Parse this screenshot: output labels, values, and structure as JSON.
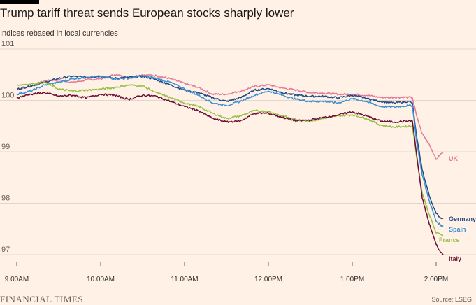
{
  "header": {
    "title": "Trump tariff threat sends European stocks sharply lower",
    "subtitle": "Indices rebased in local currencies"
  },
  "footer": {
    "logo": "FINANCIAL TIMES",
    "source": "Source: LSEG"
  },
  "colors": {
    "background": "#FFF1E5",
    "grid": "#E3D6CB",
    "UK": "#E37A95",
    "Germany": "#204A87",
    "Spain": "#3A8FD0",
    "France": "#96BF46",
    "Italy": "#6B0F33"
  },
  "chart_data": {
    "type": "line",
    "title": "Trump tariff threat sends European stocks sharply lower",
    "subtitle": "Indices rebased in local currencies",
    "xlabel": "",
    "ylabel": "",
    "xlim": [
      "9:00",
      "14:08"
    ],
    "ylim": [
      96.85,
      101.0
    ],
    "yticks": [
      97,
      98,
      99,
      100,
      101
    ],
    "xticks": [
      "9.00AM",
      "10.00AM",
      "11.00AM",
      "12.00PM",
      "1.00PM",
      "2.00PM"
    ],
    "grid": true,
    "legend": "direct labels at line ends",
    "series": [
      {
        "name": "UK",
        "points": [
          [
            "9:00",
            100.22
          ],
          [
            "9:10",
            100.28
          ],
          [
            "9:20",
            100.38
          ],
          [
            "9:30",
            100.4
          ],
          [
            "9:40",
            100.35
          ],
          [
            "9:50",
            100.4
          ],
          [
            "10:00",
            100.42
          ],
          [
            "10:10",
            100.5
          ],
          [
            "10:20",
            100.45
          ],
          [
            "10:30",
            100.5
          ],
          [
            "10:40",
            100.48
          ],
          [
            "10:50",
            100.42
          ],
          [
            "11:00",
            100.33
          ],
          [
            "11:10",
            100.25
          ],
          [
            "11:20",
            100.12
          ],
          [
            "11:30",
            100.12
          ],
          [
            "11:40",
            100.18
          ],
          [
            "11:50",
            100.27
          ],
          [
            "12:00",
            100.3
          ],
          [
            "12:10",
            100.24
          ],
          [
            "12:20",
            100.2
          ],
          [
            "12:30",
            100.15
          ],
          [
            "12:40",
            100.14
          ],
          [
            "12:50",
            100.12
          ],
          [
            "13:00",
            100.12
          ],
          [
            "13:10",
            100.1
          ],
          [
            "13:20",
            100.06
          ],
          [
            "13:30",
            100.06
          ],
          [
            "13:40",
            100.06
          ],
          [
            "13:43",
            100.05
          ],
          [
            "13:46",
            99.7
          ],
          [
            "13:50",
            99.35
          ],
          [
            "13:55",
            99.15
          ],
          [
            "14:00",
            98.85
          ],
          [
            "14:03",
            98.95
          ],
          [
            "14:05",
            98.98
          ]
        ]
      },
      {
        "name": "Germany",
        "points": [
          [
            "9:00",
            100.22
          ],
          [
            "9:10",
            100.28
          ],
          [
            "9:20",
            100.35
          ],
          [
            "9:30",
            100.43
          ],
          [
            "9:40",
            100.47
          ],
          [
            "9:50",
            100.45
          ],
          [
            "10:00",
            100.47
          ],
          [
            "10:10",
            100.43
          ],
          [
            "10:20",
            100.45
          ],
          [
            "10:30",
            100.47
          ],
          [
            "10:40",
            100.4
          ],
          [
            "10:50",
            100.3
          ],
          [
            "11:00",
            100.2
          ],
          [
            "11:10",
            100.15
          ],
          [
            "11:20",
            100.05
          ],
          [
            "11:30",
            99.98
          ],
          [
            "11:40",
            100.05
          ],
          [
            "11:50",
            100.2
          ],
          [
            "12:00",
            100.23
          ],
          [
            "12:10",
            100.15
          ],
          [
            "12:20",
            100.1
          ],
          [
            "12:30",
            100.08
          ],
          [
            "12:40",
            100.08
          ],
          [
            "12:50",
            100.05
          ],
          [
            "13:00",
            100.1
          ],
          [
            "13:10",
            100.04
          ],
          [
            "13:20",
            99.98
          ],
          [
            "13:30",
            99.95
          ],
          [
            "13:40",
            99.98
          ],
          [
            "13:43",
            99.95
          ],
          [
            "13:46",
            99.3
          ],
          [
            "13:50",
            98.65
          ],
          [
            "13:55",
            98.15
          ],
          [
            "14:00",
            97.8
          ],
          [
            "14:03",
            97.72
          ],
          [
            "14:05",
            97.7
          ]
        ]
      },
      {
        "name": "Spain",
        "points": [
          [
            "9:00",
            100.12
          ],
          [
            "9:10",
            100.18
          ],
          [
            "9:20",
            100.3
          ],
          [
            "9:30",
            100.35
          ],
          [
            "9:40",
            100.42
          ],
          [
            "9:50",
            100.45
          ],
          [
            "10:00",
            100.47
          ],
          [
            "10:10",
            100.42
          ],
          [
            "10:20",
            100.43
          ],
          [
            "10:30",
            100.48
          ],
          [
            "10:40",
            100.43
          ],
          [
            "10:50",
            100.35
          ],
          [
            "11:00",
            100.22
          ],
          [
            "11:10",
            100.1
          ],
          [
            "11:20",
            99.95
          ],
          [
            "11:30",
            99.9
          ],
          [
            "11:40",
            99.98
          ],
          [
            "11:50",
            100.1
          ],
          [
            "12:00",
            100.18
          ],
          [
            "12:10",
            100.1
          ],
          [
            "12:20",
            100.02
          ],
          [
            "12:30",
            99.98
          ],
          [
            "12:40",
            99.98
          ],
          [
            "12:50",
            99.95
          ],
          [
            "13:00",
            100.03
          ],
          [
            "13:10",
            99.98
          ],
          [
            "13:20",
            99.88
          ],
          [
            "13:30",
            99.87
          ],
          [
            "13:40",
            99.9
          ],
          [
            "13:43",
            99.9
          ],
          [
            "13:46",
            99.2
          ],
          [
            "13:50",
            98.55
          ],
          [
            "13:55",
            98.05
          ],
          [
            "14:00",
            97.65
          ],
          [
            "14:03",
            97.58
          ],
          [
            "14:05",
            97.55
          ]
        ]
      },
      {
        "name": "France",
        "points": [
          [
            "9:00",
            100.3
          ],
          [
            "9:10",
            100.32
          ],
          [
            "9:20",
            100.35
          ],
          [
            "9:30",
            100.22
          ],
          [
            "9:40",
            100.18
          ],
          [
            "9:50",
            100.2
          ],
          [
            "10:00",
            100.22
          ],
          [
            "10:10",
            100.25
          ],
          [
            "10:20",
            100.3
          ],
          [
            "10:30",
            100.28
          ],
          [
            "10:40",
            100.15
          ],
          [
            "10:50",
            100.05
          ],
          [
            "11:00",
            99.95
          ],
          [
            "11:10",
            99.88
          ],
          [
            "11:20",
            99.75
          ],
          [
            "11:30",
            99.65
          ],
          [
            "11:40",
            99.7
          ],
          [
            "11:50",
            99.8
          ],
          [
            "12:00",
            99.78
          ],
          [
            "12:10",
            99.7
          ],
          [
            "12:20",
            99.62
          ],
          [
            "12:30",
            99.6
          ],
          [
            "12:40",
            99.65
          ],
          [
            "12:50",
            99.7
          ],
          [
            "13:00",
            99.72
          ],
          [
            "13:10",
            99.65
          ],
          [
            "13:20",
            99.52
          ],
          [
            "13:30",
            99.48
          ],
          [
            "13:40",
            99.5
          ],
          [
            "13:43",
            99.5
          ],
          [
            "13:46",
            98.9
          ],
          [
            "13:50",
            98.2
          ],
          [
            "13:55",
            97.78
          ],
          [
            "14:00",
            97.42
          ],
          [
            "14:03",
            97.4
          ],
          [
            "14:05",
            97.38
          ]
        ]
      },
      {
        "name": "Italy",
        "points": [
          [
            "9:00",
            100.05
          ],
          [
            "9:10",
            100.12
          ],
          [
            "9:20",
            100.15
          ],
          [
            "9:30",
            100.08
          ],
          [
            "9:40",
            100.1
          ],
          [
            "9:50",
            100.05
          ],
          [
            "10:00",
            100.12
          ],
          [
            "10:10",
            100.1
          ],
          [
            "10:20",
            100.02
          ],
          [
            "10:30",
            100.1
          ],
          [
            "10:40",
            100.08
          ],
          [
            "10:50",
            99.98
          ],
          [
            "11:00",
            99.88
          ],
          [
            "11:10",
            99.8
          ],
          [
            "11:20",
            99.65
          ],
          [
            "11:30",
            99.58
          ],
          [
            "11:40",
            99.6
          ],
          [
            "11:50",
            99.75
          ],
          [
            "12:00",
            99.75
          ],
          [
            "12:10",
            99.67
          ],
          [
            "12:20",
            99.6
          ],
          [
            "12:30",
            99.62
          ],
          [
            "12:40",
            99.67
          ],
          [
            "12:50",
            99.72
          ],
          [
            "13:00",
            99.78
          ],
          [
            "13:10",
            99.7
          ],
          [
            "13:20",
            99.6
          ],
          [
            "13:30",
            99.58
          ],
          [
            "13:40",
            99.6
          ],
          [
            "13:43",
            99.6
          ],
          [
            "13:46",
            98.95
          ],
          [
            "13:50",
            98.1
          ],
          [
            "13:55",
            97.6
          ],
          [
            "14:00",
            97.2
          ],
          [
            "14:03",
            97.05
          ],
          [
            "14:05",
            97.0
          ]
        ]
      }
    ]
  }
}
